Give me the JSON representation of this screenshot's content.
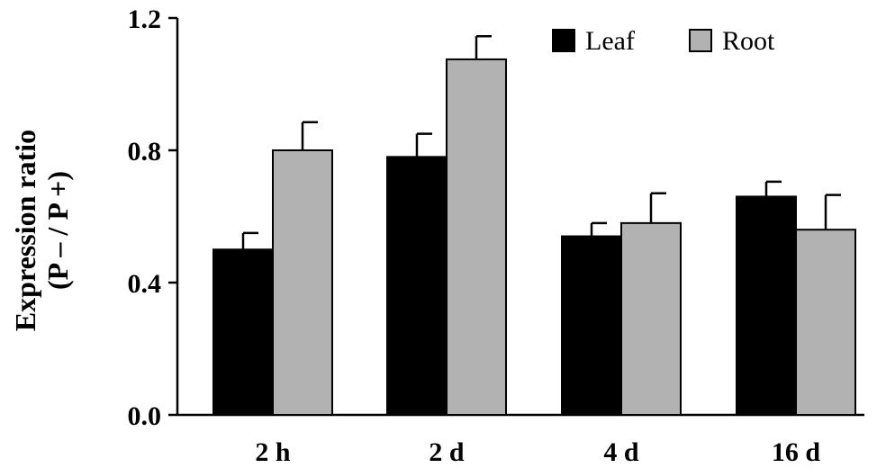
{
  "chart_data": {
    "type": "bar",
    "title": "",
    "xlabel": "",
    "ylabel": [
      "Expression ratio",
      "(P – / P +)"
    ],
    "categories": [
      "2 h",
      "2 d",
      "4 d",
      "16 d"
    ],
    "ylim": [
      0.0,
      1.2
    ],
    "yticks": [
      0.0,
      0.4,
      0.8,
      1.2
    ],
    "ytick_labels": [
      "0.0",
      "0.4",
      "0.8",
      "1.2"
    ],
    "grid": false,
    "legend_position": "top-right",
    "series": [
      {
        "name": "Leaf",
        "color": "#000000",
        "values": [
          0.5,
          0.78,
          0.54,
          0.66
        ],
        "errors": [
          0.05,
          0.07,
          0.04,
          0.045
        ]
      },
      {
        "name": "Root",
        "color": "#b2b2b2",
        "values": [
          0.8,
          1.075,
          0.58,
          0.56
        ],
        "errors": [
          0.085,
          0.07,
          0.09,
          0.105
        ]
      }
    ]
  }
}
